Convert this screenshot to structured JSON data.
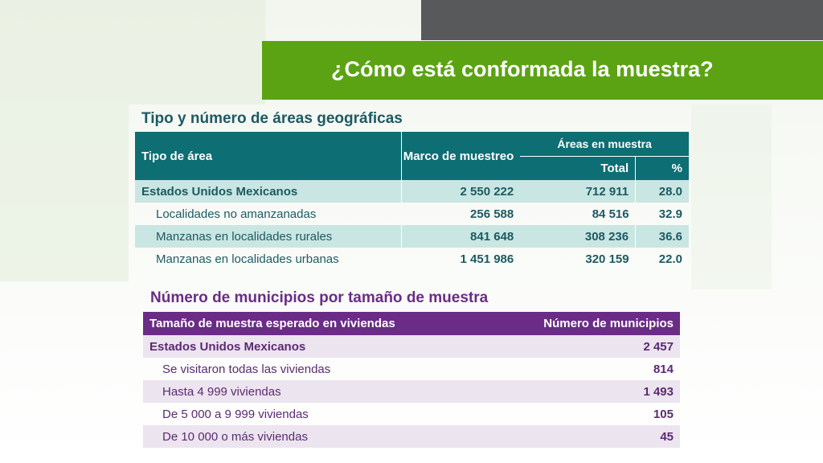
{
  "header": {
    "title": "¿Cómo está conformada la muestra?"
  },
  "section1": {
    "title": "Tipo y número de áreas geográficas",
    "headers": {
      "tipo": "Tipo de área",
      "marco": "Marco de muestreo",
      "areas": "Áreas en muestra",
      "total": "Total",
      "pct": "%"
    },
    "rows": [
      {
        "name": "Estados Unidos Mexicanos",
        "marco": "2 550 222",
        "total": "712 911",
        "pct": "28.0"
      },
      {
        "name": "Localidades no amanzanadas",
        "marco": "256 588",
        "total": "84 516",
        "pct": "32.9"
      },
      {
        "name": "Manzanas en localidades rurales",
        "marco": "841 648",
        "total": "308 236",
        "pct": "36.6"
      },
      {
        "name": "Manzanas en localidades urbanas",
        "marco": "1 451 986",
        "total": "320 159",
        "pct": "22.0"
      }
    ]
  },
  "section2": {
    "title": "Número de municipios por tamaño de muestra",
    "headers": {
      "tamano": "Tamaño de muestra esperado en viviendas",
      "numero": "Número de municipios"
    },
    "rows": [
      {
        "name": "Estados Unidos Mexicanos",
        "value": "2 457"
      },
      {
        "name": "Se visitaron todas las viviendas",
        "value": "814"
      },
      {
        "name": "Hasta 4 999 viviendas",
        "value": "1 493"
      },
      {
        "name": "De 5 000 a 9 999 viviendas",
        "value": "105"
      },
      {
        "name": "De 10 000 o más viviendas",
        "value": "45"
      }
    ]
  },
  "colors": {
    "title_bar": "#5ba312",
    "dark_bar": "#58595b",
    "teal_header": "#0d6e73",
    "teal_shade": "#c9e6e2",
    "purple_header": "#6a2c86",
    "purple_shade": "#ece4ef"
  }
}
